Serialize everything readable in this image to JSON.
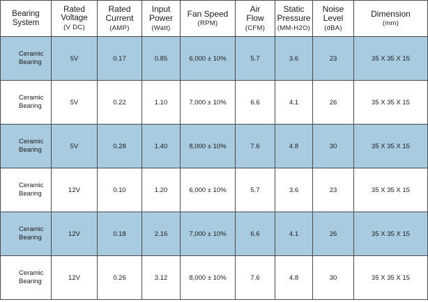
{
  "columns": [
    {
      "title": "Bearing\nSystem",
      "unit": ""
    },
    {
      "title": "Rated\nVoltage",
      "unit": "(V DC)"
    },
    {
      "title": "Rated\nCurrent",
      "unit": "(AMP)"
    },
    {
      "title": "Input\nPower",
      "unit": "(Watt)"
    },
    {
      "title": "Fan Speed",
      "unit": "(RPM)"
    },
    {
      "title": "Air\nFlow",
      "unit": "(CFM)"
    },
    {
      "title": "Static\nPressure",
      "unit": "(MM-H2O)"
    },
    {
      "title": "Noise\nLevel",
      "unit": "(dBA)"
    },
    {
      "title": "Dimension",
      "unit": "(mm)"
    }
  ],
  "rows": [
    {
      "bearing": "Ceramic\nBearing",
      "voltage": "5V",
      "current": "0.17",
      "power": "0.85",
      "speed": "6,000 ± 10%",
      "airflow": "5.7",
      "pressure": "3.6",
      "noise": "23",
      "dimension": "35 X 35 X 15"
    },
    {
      "bearing": "Ceramic\nBearing",
      "voltage": "5V",
      "current": "0.22",
      "power": "1.10",
      "speed": "7,000 ± 10%",
      "airflow": "6.6",
      "pressure": "4.1",
      "noise": "26",
      "dimension": "35 X 35 X 15"
    },
    {
      "bearing": "Ceramic\nBearing",
      "voltage": "5V",
      "current": "0.28",
      "power": "1.40",
      "speed": "8,000 ± 10%",
      "airflow": "7.6",
      "pressure": "4.8",
      "noise": "30",
      "dimension": "35 X 35 X 15"
    },
    {
      "bearing": "Ceramic\nBearing",
      "voltage": "12V",
      "current": "0.10",
      "power": "1.20",
      "speed": "6,000 ± 10%",
      "airflow": "5.7",
      "pressure": "3.6",
      "noise": "23",
      "dimension": "35 X 35 X 15"
    },
    {
      "bearing": "Ceramic\nBearing",
      "voltage": "12V",
      "current": "0.18",
      "power": "2.16",
      "speed": "7,000 ± 10%",
      "airflow": "6.6",
      "pressure": "4.1",
      "noise": "26",
      "dimension": "35 X 35 X 15"
    },
    {
      "bearing": "Ceramic\nBearing",
      "voltage": "12V",
      "current": "0.26",
      "power": "3.12",
      "speed": "8,000 ± 10%",
      "airflow": "7.6",
      "pressure": "4.8",
      "noise": "30",
      "dimension": "35 X 35 X 15"
    }
  ],
  "style": {
    "row_shade_color": "#a9cbe0",
    "border_color": "#4a4a4a"
  }
}
